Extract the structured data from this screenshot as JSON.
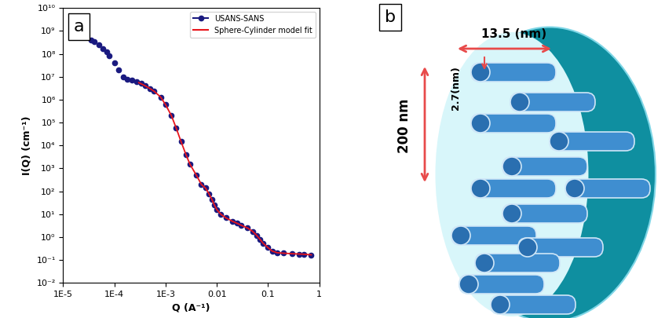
{
  "chart_data": {
    "type": "scatter",
    "panel_label": "a",
    "x_label": "Q (A⁻¹)",
    "y_label": "I(Q) (cm⁻¹)",
    "log": true,
    "legend": "upper right",
    "xlim": [
      1e-05,
      1
    ],
    "xticks": [
      {
        "value": 1e-05,
        "label": "1E-5"
      },
      {
        "value": 0.0001,
        "label": "1E-4"
      },
      {
        "value": 0.001,
        "label": "1E-3"
      },
      0.01,
      0.1,
      1
    ],
    "ylim": [
      0.01,
      10000000000.0
    ],
    "yticks": [
      {
        "value": 0.01,
        "label": "10⁻²"
      },
      {
        "value": 0.1,
        "label": "10⁻¹"
      },
      {
        "value": 1,
        "label": "10⁰"
      },
      {
        "value": 10,
        "label": "10¹"
      },
      {
        "value": 100,
        "label": "10²"
      },
      {
        "value": 1000,
        "label": "10³"
      },
      {
        "value": 10000,
        "label": "10⁴"
      },
      {
        "value": 100000,
        "label": "10⁵"
      },
      {
        "value": 1000000,
        "label": "10⁶"
      },
      {
        "value": 10000000,
        "label": "10⁷"
      },
      {
        "value": 100000000,
        "label": "10⁸"
      },
      {
        "value": 1000000000,
        "label": "10⁹"
      },
      {
        "value": 10000000000,
        "label": "10¹⁰"
      }
    ],
    "series": [
      {
        "name": "USANS-SANS",
        "type": "scatter",
        "color": "#1a1a80",
        "marker": "o",
        "x": [
          3.5e-05,
          4e-05,
          5e-05,
          6e-05,
          7e-05,
          8e-05,
          0.0001,
          0.00012,
          0.00015,
          0.00018,
          0.00022,
          0.00027,
          0.00033,
          0.0004,
          0.0005,
          0.0006,
          0.0008,
          0.001,
          0.0013,
          0.0016,
          0.002,
          0.0025,
          0.003,
          0.004,
          0.005,
          0.006,
          0.007,
          0.008,
          0.009,
          0.01,
          0.012,
          0.015,
          0.02,
          0.025,
          0.03,
          0.04,
          0.05,
          0.06,
          0.07,
          0.08,
          0.1,
          0.12,
          0.15,
          0.2,
          0.3,
          0.4,
          0.5,
          0.7
        ],
        "values": [
          400000000.0,
          350000000.0,
          250000000.0,
          170000000.0,
          120000000.0,
          80000000.0,
          40000000.0,
          20000000.0,
          10000000.0,
          8000000.0,
          7000000.0,
          6000000.0,
          5000000.0,
          4000000.0,
          3000000.0,
          2300000.0,
          1300000.0,
          600000.0,
          200000.0,
          60000.0,
          15000.0,
          4000,
          1500,
          500,
          200,
          150,
          80,
          45,
          25,
          16,
          10,
          7,
          5,
          4,
          3.3,
          2.5,
          1.8,
          1.2,
          0.8,
          0.55,
          0.35,
          0.25,
          0.21,
          0.2,
          0.19,
          0.18,
          0.18,
          0.17
        ]
      },
      {
        "name": "Sphere-Cylinder model fit",
        "type": "line",
        "color": "#e8151b",
        "line_style": "solid",
        "x": [
          0.0003,
          0.0004,
          0.0005,
          0.0006,
          0.0008,
          0.001,
          0.0013,
          0.0016,
          0.002,
          0.0025,
          0.003,
          0.004,
          0.005,
          0.006,
          0.007,
          0.008,
          0.009,
          0.01,
          0.012,
          0.015,
          0.02,
          0.025,
          0.03,
          0.04,
          0.05,
          0.06,
          0.07,
          0.08,
          0.1,
          0.12,
          0.15,
          0.2,
          0.3,
          0.5,
          0.7
        ],
        "values": [
          5500000.0,
          4000000.0,
          3000000.0,
          2300000.0,
          1300000.0,
          600000.0,
          200000.0,
          60000.0,
          15000.0,
          4000,
          1500,
          500,
          200,
          140,
          80,
          45,
          25,
          16,
          10,
          7,
          5,
          4,
          3.3,
          2.5,
          1.8,
          1.2,
          0.8,
          0.55,
          0.35,
          0.25,
          0.21,
          0.2,
          0.19,
          0.18,
          0.17
        ]
      }
    ]
  },
  "diagram": {
    "panel_label": "b",
    "length_label": "13.5 (nm)",
    "diameter_label": "2.7(nm)",
    "particle_label": "200 nm"
  }
}
